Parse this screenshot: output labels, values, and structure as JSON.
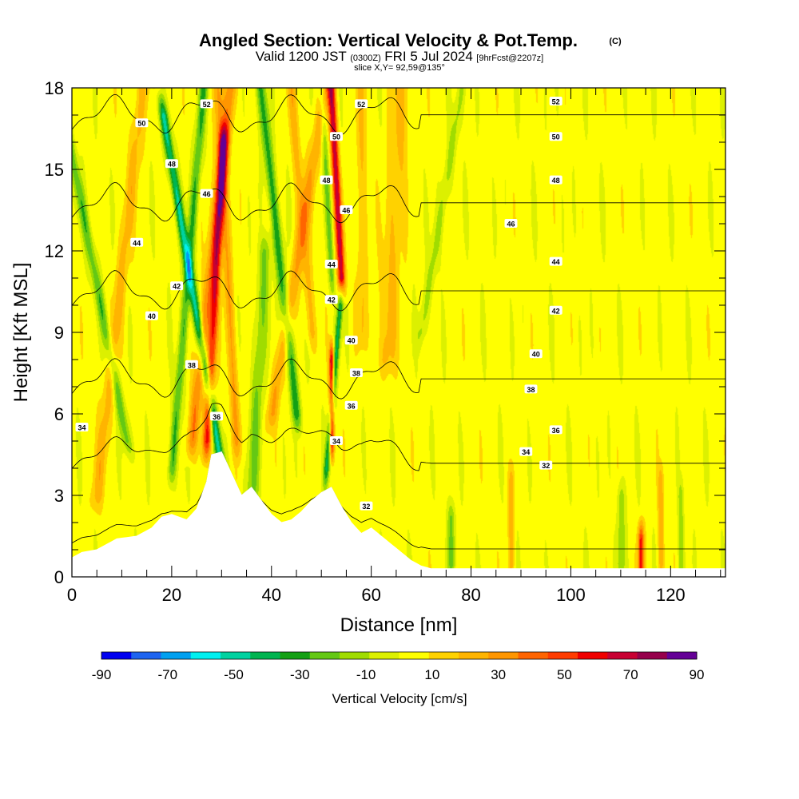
{
  "chart_data": {
    "type": "heatmap",
    "title": "Angled Section: Vertical Velocity & Pot.Temp.",
    "title_mark": "(C)",
    "subtitle_parts": [
      "Valid 1200 JST",
      "(0300Z)",
      "FRI 5 Jul 2024",
      "[9hrFcst@2207z]"
    ],
    "slice_text": "slice X,Y= 92,59@135°",
    "xlabel": "Distance [nm]",
    "ylabel": "Height [Kft MSL]",
    "xlim": [
      0,
      131
    ],
    "ylim": [
      0,
      18
    ],
    "x_ticks": [
      0,
      20,
      40,
      60,
      80,
      100,
      120
    ],
    "y_ticks": [
      0,
      3,
      6,
      9,
      12,
      15,
      18
    ],
    "colorbar": {
      "label": "Vertical Velocity [cm/s]",
      "tick_labels": [
        "-90",
        "-70",
        "-50",
        "-30",
        "-10",
        "10",
        "30",
        "50",
        "70",
        "90"
      ],
      "colors": [
        "#0000f0",
        "#1e64f0",
        "#00a0f0",
        "#00f0f0",
        "#00d2a0",
        "#00b450",
        "#14a014",
        "#64c814",
        "#a0dc00",
        "#dcf000",
        "#ffff00",
        "#ffd200",
        "#ffb400",
        "#ff9600",
        "#ff6400",
        "#ff3c00",
        "#f00000",
        "#c80032",
        "#96004b",
        "#640096"
      ]
    },
    "terrain_kft": [
      [
        0,
        0.7
      ],
      [
        2,
        0.9
      ],
      [
        5,
        1.0
      ],
      [
        9,
        1.4
      ],
      [
        13,
        1.5
      ],
      [
        16,
        1.8
      ],
      [
        18,
        2.2
      ],
      [
        20,
        2.3
      ],
      [
        23,
        2.1
      ],
      [
        25,
        2.5
      ],
      [
        27,
        3.5
      ],
      [
        28,
        4.5
      ],
      [
        30,
        4.6
      ],
      [
        32,
        3.8
      ],
      [
        34,
        3.0
      ],
      [
        36,
        3.3
      ],
      [
        38,
        2.8
      ],
      [
        40,
        2.3
      ],
      [
        42,
        2.0
      ],
      [
        44,
        2.1
      ],
      [
        46,
        2.4
      ],
      [
        48,
        2.8
      ],
      [
        50,
        3.1
      ],
      [
        52,
        3.3
      ],
      [
        54,
        2.6
      ],
      [
        56,
        2.0
      ],
      [
        58,
        1.6
      ],
      [
        60,
        1.8
      ],
      [
        62,
        1.5
      ],
      [
        64,
        1.2
      ],
      [
        66,
        0.9
      ],
      [
        68,
        0.6
      ],
      [
        70,
        0.4
      ],
      [
        72,
        0.3
      ],
      [
        131,
        0.3
      ]
    ],
    "updrafts": [
      {
        "x": 5,
        "z0": 3,
        "z1": 18,
        "slope": 0.2,
        "w": 1.3,
        "amp": 20
      },
      {
        "x": 11,
        "z0": 5,
        "z1": 18,
        "slope": -0.35,
        "w": 1.0,
        "amp": -30
      },
      {
        "x": 20,
        "z0": 4,
        "z1": 18,
        "slope": 0.15,
        "w": 0.9,
        "amp": -35
      },
      {
        "x": 24,
        "z0": 5,
        "z1": 18,
        "slope": 0.2,
        "w": 1.2,
        "amp": 35
      },
      {
        "x": 27,
        "z0": 5,
        "z1": 16,
        "slope": 0.1,
        "w": 0.9,
        "amp": 55
      },
      {
        "x": 30,
        "z0": 4,
        "z1": 17,
        "slope": -0.3,
        "w": 0.9,
        "amp": -55
      },
      {
        "x": 33,
        "z0": 5,
        "z1": 18,
        "slope": -0.1,
        "w": 1.0,
        "amp": 25
      },
      {
        "x": 36,
        "z0": 3,
        "z1": 12,
        "slope": 0.1,
        "w": 1.3,
        "amp": -25
      },
      {
        "x": 40,
        "z0": 6,
        "z1": 18,
        "slope": 0.3,
        "w": 1.3,
        "amp": 25
      },
      {
        "x": 45,
        "z0": 6,
        "z1": 18,
        "slope": -0.2,
        "w": 1.0,
        "amp": -40
      },
      {
        "x": 48,
        "z0": 9,
        "z1": 18,
        "slope": -0.15,
        "w": 1.0,
        "amp": 20
      },
      {
        "x": 51,
        "z0": 4,
        "z1": 10,
        "slope": 0.15,
        "w": 0.6,
        "amp": -45
      },
      {
        "x": 52,
        "z0": 5,
        "z1": 8,
        "slope": 0.0,
        "w": 0.5,
        "amp": 75
      },
      {
        "x": 54,
        "z0": 11,
        "z1": 18,
        "slope": -0.1,
        "w": 0.8,
        "amp": 70
      },
      {
        "x": 52,
        "z0": 11,
        "z1": 18,
        "slope": -0.1,
        "w": 0.7,
        "amp": -25
      },
      {
        "x": 58,
        "z0": 9,
        "z1": 18,
        "slope": 0.0,
        "w": 1.2,
        "amp": 15
      },
      {
        "x": 63,
        "z0": 8,
        "z1": 18,
        "slope": 0.1,
        "w": 2.0,
        "amp": 18
      },
      {
        "x": 70,
        "z0": 9,
        "z1": 18,
        "slope": 0.3,
        "w": 1.0,
        "amp": -18
      },
      {
        "x": 76,
        "z0": 0.5,
        "z1": 2.2,
        "slope": 0.0,
        "w": 0.8,
        "amp": -25
      },
      {
        "x": 88,
        "z0": 0.5,
        "z1": 3.5,
        "slope": 0.0,
        "w": 0.6,
        "amp": 22
      },
      {
        "x": 110,
        "z0": 0.5,
        "z1": 3,
        "slope": 0.0,
        "w": 0.8,
        "amp": -22
      },
      {
        "x": 114,
        "z0": 0.3,
        "z1": 1.4,
        "slope": 0.0,
        "w": 0.6,
        "amp": 60
      },
      {
        "x": 118,
        "z0": 0.5,
        "z1": 3.5,
        "slope": 0.0,
        "w": 0.6,
        "amp": 22
      },
      {
        "x": 122,
        "z0": 0.3,
        "z1": 3,
        "slope": 0.0,
        "w": 0.6,
        "amp": -18
      }
    ],
    "contour_levels": [
      32,
      34,
      36,
      38,
      40,
      42,
      44,
      46,
      48,
      50,
      52
    ],
    "contour_labels": [
      {
        "text": "52",
        "x": 27,
        "y": 17.4
      },
      {
        "text": "50",
        "x": 14,
        "y": 16.7
      },
      {
        "text": "48",
        "x": 20,
        "y": 15.2
      },
      {
        "text": "46",
        "x": 27,
        "y": 14.1
      },
      {
        "text": "44",
        "x": 13,
        "y": 12.3
      },
      {
        "text": "42",
        "x": 21,
        "y": 10.7
      },
      {
        "text": "40",
        "x": 16,
        "y": 9.6
      },
      {
        "text": "38",
        "x": 24,
        "y": 7.8
      },
      {
        "text": "36",
        "x": 29,
        "y": 5.9
      },
      {
        "text": "34",
        "x": 2,
        "y": 5.5
      },
      {
        "text": "52",
        "x": 58,
        "y": 17.4
      },
      {
        "text": "50",
        "x": 53,
        "y": 16.2
      },
      {
        "text": "48",
        "x": 51,
        "y": 14.6
      },
      {
        "text": "46",
        "x": 55,
        "y": 13.5
      },
      {
        "text": "44",
        "x": 52,
        "y": 11.5
      },
      {
        "text": "42",
        "x": 52,
        "y": 10.2
      },
      {
        "text": "40",
        "x": 56,
        "y": 8.7
      },
      {
        "text": "38",
        "x": 57,
        "y": 7.5
      },
      {
        "text": "36",
        "x": 56,
        "y": 6.3
      },
      {
        "text": "34",
        "x": 53,
        "y": 5.0
      },
      {
        "text": "32",
        "x": 59,
        "y": 2.6
      },
      {
        "text": "52",
        "x": 97,
        "y": 17.5
      },
      {
        "text": "50",
        "x": 97,
        "y": 16.2
      },
      {
        "text": "48",
        "x": 97,
        "y": 14.6
      },
      {
        "text": "46",
        "x": 88,
        "y": 13.0
      },
      {
        "text": "44",
        "x": 97,
        "y": 11.6
      },
      {
        "text": "42",
        "x": 97,
        "y": 9.8
      },
      {
        "text": "40",
        "x": 93,
        "y": 8.2
      },
      {
        "text": "38",
        "x": 92,
        "y": 6.9
      },
      {
        "text": "36",
        "x": 97,
        "y": 5.4
      },
      {
        "text": "34",
        "x": 91,
        "y": 4.6
      },
      {
        "text": "32",
        "x": 95,
        "y": 4.1
      }
    ]
  }
}
